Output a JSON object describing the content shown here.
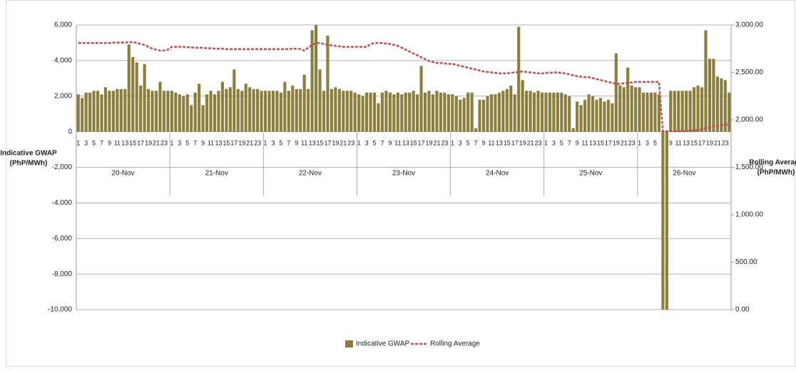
{
  "chart_data": {
    "type": "bar",
    "ylabel": [
      "Indicative GWAP",
      "(PhP/MWh)"
    ],
    "y2label": [
      "Rolling Average",
      "(PhP/MWh)"
    ],
    "days": [
      "20-Nov",
      "21-Nov",
      "22-Nov",
      "23-Nov",
      "24-Nov",
      "25-Nov",
      "26-Nov"
    ],
    "categories": [
      1,
      null,
      3,
      null,
      5,
      null,
      7,
      null,
      9,
      null,
      11,
      null,
      13,
      null,
      15,
      null,
      17,
      null,
      19,
      null,
      21,
      null,
      23,
      null,
      1,
      null,
      3,
      null,
      5,
      null,
      7,
      null,
      9,
      null,
      11,
      null,
      13,
      null,
      15,
      null,
      17,
      null,
      19,
      null,
      21,
      null,
      23,
      null,
      1,
      null,
      3,
      null,
      5,
      null,
      7,
      null,
      9,
      null,
      11,
      null,
      13,
      null,
      15,
      null,
      17,
      null,
      19,
      null,
      21,
      null,
      23,
      null,
      1,
      null,
      3,
      null,
      5,
      null,
      7,
      null,
      9,
      null,
      11,
      null,
      13,
      null,
      15,
      null,
      17,
      null,
      19,
      null,
      21,
      null,
      23,
      null,
      1,
      null,
      3,
      null,
      5,
      null,
      7,
      null,
      9,
      null,
      11,
      null,
      13,
      null,
      15,
      null,
      17,
      null,
      19,
      null,
      21,
      null,
      23,
      null,
      1,
      null,
      3,
      null,
      5,
      null,
      7,
      null,
      9,
      null,
      11,
      null,
      13,
      null,
      15,
      null,
      17,
      null,
      19,
      null,
      21,
      null,
      23,
      null,
      1,
      null,
      3,
      null,
      5,
      null,
      7,
      null,
      9,
      null,
      11,
      null,
      13,
      null,
      15,
      null,
      17,
      null,
      19,
      null,
      21,
      null,
      23,
      null
    ],
    "series": [
      {
        "name": "Indicative GWAP",
        "color": "#8c7e3c",
        "type": "bar",
        "values": [
          2100,
          1900,
          2200,
          2200,
          2300,
          2300,
          2100,
          2500,
          2300,
          2300,
          2400,
          2400,
          2400,
          4900,
          4200,
          3900,
          2600,
          3800,
          2400,
          2300,
          2300,
          2800,
          2300,
          2300,
          2300,
          2200,
          2100,
          2000,
          2100,
          1500,
          2200,
          2700,
          1500,
          2100,
          2300,
          2100,
          2300,
          2800,
          2400,
          2500,
          3500,
          2400,
          2300,
          2700,
          2500,
          2400,
          2400,
          2300,
          2300,
          2300,
          2300,
          2300,
          2200,
          2800,
          2300,
          2600,
          2400,
          2400,
          3200,
          2400,
          5700,
          6000,
          3500,
          2300,
          5400,
          2400,
          2500,
          2400,
          2300,
          2300,
          2300,
          2200,
          2100,
          2000,
          2200,
          2200,
          2200,
          1600,
          2200,
          2300,
          2200,
          2100,
          2200,
          2100,
          2200,
          2200,
          2300,
          2100,
          3700,
          2200,
          2300,
          2100,
          2300,
          2200,
          2200,
          2100,
          2100,
          2000,
          1800,
          1900,
          2200,
          2200,
          200,
          1800,
          1800,
          2000,
          2100,
          2100,
          2200,
          2300,
          2400,
          2600,
          2100,
          5900,
          2900,
          2300,
          2300,
          2200,
          2300,
          2200,
          2200,
          2200,
          2200,
          2200,
          2200,
          2100,
          2000,
          200,
          1700,
          1500,
          1800,
          2100,
          2000,
          1800,
          1900,
          1700,
          1800,
          1600,
          4400,
          2600,
          2500,
          3600,
          2600,
          2500,
          2500,
          2200,
          2200,
          2200,
          2200,
          2100,
          -10000,
          -10000,
          2300,
          2300,
          2300,
          2300,
          2300,
          2300,
          2500,
          2600,
          2500,
          5700,
          4100,
          4100,
          3100,
          3000,
          2900,
          2200
        ]
      },
      {
        "name": "Rolling Average",
        "color": "#c0504d",
        "type": "line",
        "axis": "y2",
        "values": [
          2810,
          2810,
          2810,
          2810,
          2810,
          2810,
          2810,
          2810,
          2810,
          2815,
          2815,
          2815,
          2815,
          2820,
          2820,
          2810,
          2800,
          2790,
          2770,
          2750,
          2740,
          2730,
          2730,
          2740,
          2770,
          2770,
          2770,
          2770,
          2765,
          2765,
          2760,
          2760,
          2760,
          2755,
          2755,
          2750,
          2750,
          2750,
          2745,
          2745,
          2745,
          2745,
          2745,
          2745,
          2745,
          2745,
          2745,
          2745,
          2745,
          2745,
          2745,
          2745,
          2745,
          2745,
          2745,
          2750,
          2750,
          2745,
          2730,
          2760,
          2790,
          2810,
          2810,
          2800,
          2790,
          2785,
          2780,
          2775,
          2770,
          2770,
          2770,
          2770,
          2770,
          2770,
          2770,
          2800,
          2810,
          2810,
          2810,
          2805,
          2800,
          2790,
          2780,
          2760,
          2740,
          2720,
          2700,
          2680,
          2660,
          2640,
          2620,
          2610,
          2600,
          2600,
          2595,
          2590,
          2590,
          2580,
          2570,
          2560,
          2550,
          2540,
          2530,
          2520,
          2510,
          2505,
          2500,
          2495,
          2490,
          2490,
          2490,
          2495,
          2500,
          2505,
          2510,
          2505,
          2500,
          2495,
          2490,
          2490,
          2495,
          2495,
          2500,
          2500,
          2495,
          2490,
          2480,
          2470,
          2460,
          2455,
          2450,
          2450,
          2440,
          2430,
          2420,
          2410,
          2400,
          2390,
          2380,
          2380,
          2385,
          2390,
          2395,
          2400,
          2400,
          2400,
          2400,
          2400,
          2400,
          2400,
          1880,
          1880,
          1880,
          1880,
          1880,
          1880,
          1880,
          1885,
          1890,
          1890,
          1900,
          1910,
          1920,
          1930,
          1940,
          1945,
          1950,
          1950
        ]
      }
    ],
    "ylim": [
      -10000,
      6000
    ],
    "yticks": [
      {
        "value": -10000,
        "label": "-10,000"
      },
      {
        "value": -8000,
        "label": "-8,000"
      },
      {
        "value": -6000,
        "label": "-6,000"
      },
      {
        "value": -4000,
        "label": "-4,000"
      },
      {
        "value": -2000,
        "label": "-2,000"
      },
      0,
      {
        "value": 2000,
        "label": "2,000"
      },
      {
        "value": 4000,
        "label": "4,000"
      },
      {
        "value": 6000,
        "label": "6,000"
      }
    ],
    "y2lim": [
      0,
      3000
    ],
    "y2ticks": [
      {
        "value": 0,
        "label": "0.00"
      },
      {
        "value": 500,
        "label": "500.00"
      },
      {
        "value": 1000,
        "label": "1,000.00"
      },
      {
        "value": 1500,
        "label": "1,500.00"
      },
      {
        "value": 2000,
        "label": "2,000.00"
      },
      {
        "value": 2500,
        "label": "2,500.00"
      },
      {
        "value": 3000,
        "label": "3,000.00"
      }
    ],
    "grid": true,
    "legend": "bottom"
  }
}
